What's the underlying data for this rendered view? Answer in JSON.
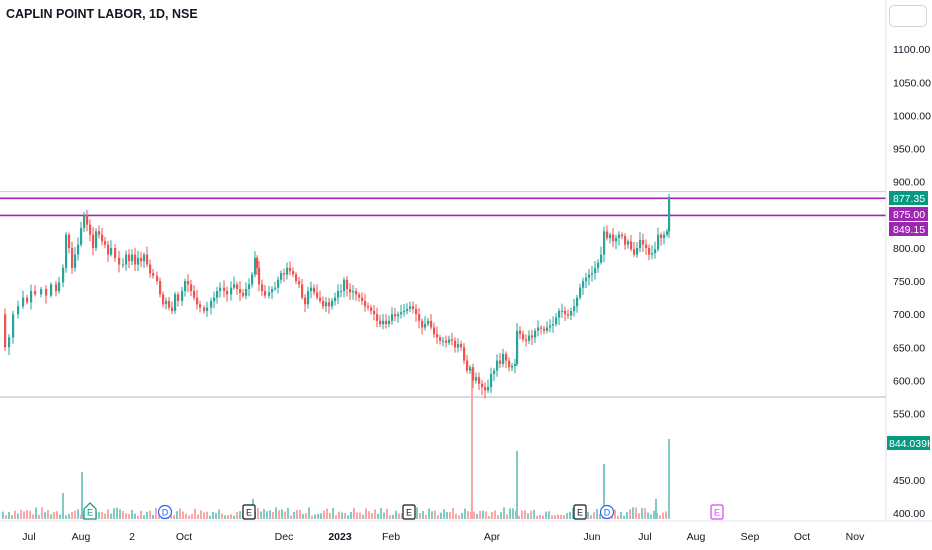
{
  "title": "CAPLIN POINT LABOR, 1D, NSE",
  "colors": {
    "up": "#26a69a",
    "down": "#ef5350",
    "level_line": "#9c27b0",
    "last_price_bg": "#089981",
    "hline": "#b2b5be",
    "grid": "#f0f3fa"
  },
  "chart_data": {
    "type": "candlestick",
    "price_axis": {
      "ticks": [
        "1100.00",
        "1050.00",
        "1000.00",
        "950.00",
        "900.00",
        "850.00",
        "800.00",
        "750.00",
        "700.00",
        "650.00",
        "600.00",
        "550.00",
        "450.00",
        "400.00"
      ],
      "range": [
        384,
        1160
      ]
    },
    "time_axis": {
      "labels": [
        "Jul",
        "Aug",
        "2",
        "Oct",
        "Dec",
        "2023",
        "Feb",
        "Apr",
        "Jun",
        "Jul",
        "Aug",
        "Sep",
        "Oct",
        "Nov"
      ],
      "bold": "2023"
    },
    "price_labels": [
      {
        "text": "877.35",
        "value": 877.35,
        "kind": "last"
      },
      {
        "text": "875.00",
        "value": 875.0,
        "kind": "level"
      },
      {
        "text": "849.15",
        "value": 849.15,
        "kind": "level"
      }
    ],
    "horizontal_lines": [
      {
        "value": 875.0,
        "style": "level"
      },
      {
        "value": 849.15,
        "style": "level"
      },
      {
        "value": 885,
        "style": "thin"
      },
      {
        "value": 575,
        "style": "thin"
      }
    ],
    "volume_label": "844.039K",
    "event_markers": [
      {
        "label": "E",
        "kind": "earnings",
        "date": "Aug"
      },
      {
        "label": "D",
        "kind": "dividend",
        "date": "Sep"
      },
      {
        "label": "E",
        "kind": "earnings",
        "date": "Nov"
      },
      {
        "label": "E",
        "kind": "earnings",
        "date": "Feb"
      },
      {
        "label": "E",
        "kind": "earnings",
        "date": "May"
      },
      {
        "label": "D",
        "kind": "dividend",
        "date": "Jun"
      },
      {
        "label": "E",
        "kind": "earnings_future",
        "date": "Aug"
      }
    ],
    "close_path": [
      [
        0,
        700
      ],
      [
        4,
        650
      ],
      [
        8,
        665
      ],
      [
        12,
        700
      ],
      [
        17,
        712
      ],
      [
        22,
        725
      ],
      [
        26,
        718
      ],
      [
        30,
        735
      ],
      [
        34,
        730
      ],
      [
        40,
        738
      ],
      [
        45,
        728
      ],
      [
        50,
        745
      ],
      [
        55,
        735
      ],
      [
        58,
        748
      ],
      [
        62,
        770
      ],
      [
        65,
        820
      ],
      [
        68,
        800
      ],
      [
        71,
        770
      ],
      [
        74,
        790
      ],
      [
        77,
        805
      ],
      [
        80,
        830
      ],
      [
        83,
        850
      ],
      [
        86,
        835
      ],
      [
        89,
        820
      ],
      [
        92,
        800
      ],
      [
        95,
        825
      ],
      [
        98,
        820
      ],
      [
        101,
        810
      ],
      [
        104,
        805
      ],
      [
        107,
        790
      ],
      [
        110,
        800
      ],
      [
        114,
        785
      ],
      [
        118,
        775
      ],
      [
        122,
        775
      ],
      [
        125,
        790
      ],
      [
        128,
        780
      ],
      [
        131,
        790
      ],
      [
        134,
        775
      ],
      [
        137,
        785
      ],
      [
        140,
        780
      ],
      [
        143,
        790
      ],
      [
        146,
        775
      ],
      [
        149,
        762
      ],
      [
        152,
        758
      ],
      [
        156,
        750
      ],
      [
        159,
        730
      ],
      [
        162,
        715
      ],
      [
        165,
        720
      ],
      [
        168,
        710
      ],
      [
        171,
        705
      ],
      [
        174,
        730
      ],
      [
        177,
        720
      ],
      [
        181,
        735
      ],
      [
        184,
        750
      ],
      [
        187,
        745
      ],
      [
        190,
        735
      ],
      [
        193,
        725
      ],
      [
        196,
        715
      ],
      [
        199,
        710
      ],
      [
        203,
        705
      ],
      [
        206,
        710
      ],
      [
        210,
        720
      ],
      [
        213,
        725
      ],
      [
        216,
        735
      ],
      [
        219,
        740
      ],
      [
        223,
        735
      ],
      [
        226,
        730
      ],
      [
        230,
        740
      ],
      [
        233,
        745
      ],
      [
        236,
        738
      ],
      [
        239,
        732
      ],
      [
        242,
        728
      ],
      [
        245,
        738
      ],
      [
        248,
        745
      ],
      [
        251,
        760
      ],
      [
        254,
        785
      ],
      [
        256,
        770
      ],
      [
        258,
        745
      ],
      [
        261,
        735
      ],
      [
        264,
        728
      ],
      [
        268,
        733
      ],
      [
        271,
        738
      ],
      [
        274,
        740
      ],
      [
        277,
        752
      ],
      [
        280,
        762
      ],
      [
        283,
        760
      ],
      [
        286,
        770
      ],
      [
        289,
        765
      ],
      [
        292,
        760
      ],
      [
        295,
        750
      ],
      [
        298,
        745
      ],
      [
        301,
        725
      ],
      [
        304,
        715
      ],
      [
        307,
        735
      ],
      [
        310,
        740
      ],
      [
        313,
        733
      ],
      [
        316,
        725
      ],
      [
        319,
        720
      ],
      [
        322,
        712
      ],
      [
        325,
        718
      ],
      [
        328,
        712
      ],
      [
        331,
        720
      ],
      [
        334,
        725
      ],
      [
        337,
        735
      ],
      [
        340,
        735
      ],
      [
        343,
        752
      ],
      [
        346,
        738
      ],
      [
        349,
        733
      ],
      [
        352,
        735
      ],
      [
        355,
        730
      ],
      [
        358,
        725
      ],
      [
        361,
        720
      ],
      [
        364,
        712
      ],
      [
        367,
        710
      ],
      [
        370,
        705
      ],
      [
        373,
        700
      ],
      [
        376,
        690
      ],
      [
        379,
        685
      ],
      [
        382,
        690
      ],
      [
        385,
        685
      ],
      [
        388,
        690
      ],
      [
        391,
        700
      ],
      [
        394,
        697
      ],
      [
        397,
        700
      ],
      [
        400,
        703
      ],
      [
        403,
        705
      ],
      [
        406,
        708
      ],
      [
        409,
        712
      ],
      [
        412,
        708
      ],
      [
        415,
        700
      ],
      [
        418,
        690
      ],
      [
        421,
        680
      ],
      [
        424,
        685
      ],
      [
        427,
        690
      ],
      [
        430,
        680
      ],
      [
        433,
        670
      ],
      [
        436,
        665
      ],
      [
        439,
        660
      ],
      [
        442,
        660
      ],
      [
        445,
        657
      ],
      [
        448,
        662
      ],
      [
        451,
        660
      ],
      [
        454,
        650
      ],
      [
        457,
        655
      ],
      [
        460,
        650
      ],
      [
        463,
        630
      ],
      [
        466,
        615
      ],
      [
        469,
        620
      ],
      [
        472,
        600
      ],
      [
        475,
        605
      ],
      [
        478,
        595
      ],
      [
        481,
        590
      ],
      [
        484,
        585
      ],
      [
        487,
        590
      ],
      [
        490,
        610
      ],
      [
        493,
        615
      ],
      [
        496,
        630
      ],
      [
        499,
        625
      ],
      [
        502,
        640
      ],
      [
        505,
        630
      ],
      [
        508,
        620
      ],
      [
        511,
        622
      ],
      [
        514,
        625
      ],
      [
        516,
        675
      ],
      [
        519,
        670
      ],
      [
        522,
        662
      ],
      [
        525,
        660
      ],
      [
        528,
        668
      ],
      [
        531,
        665
      ],
      [
        534,
        675
      ],
      [
        537,
        680
      ],
      [
        540,
        678
      ],
      [
        543,
        675
      ],
      [
        546,
        680
      ],
      [
        549,
        683
      ],
      [
        552,
        685
      ],
      [
        555,
        695
      ],
      [
        558,
        705
      ],
      [
        561,
        705
      ],
      [
        564,
        700
      ],
      [
        567,
        698
      ],
      [
        570,
        705
      ],
      [
        573,
        712
      ],
      [
        576,
        725
      ],
      [
        579,
        740
      ],
      [
        582,
        750
      ],
      [
        585,
        755
      ],
      [
        588,
        760
      ],
      [
        591,
        762
      ],
      [
        594,
        770
      ],
      [
        597,
        778
      ],
      [
        600,
        790
      ],
      [
        603,
        825
      ],
      [
        606,
        815
      ],
      [
        609,
        820
      ],
      [
        612,
        810
      ],
      [
        615,
        815
      ],
      [
        618,
        820
      ],
      [
        621,
        818
      ],
      [
        624,
        805
      ],
      [
        627,
        810
      ],
      [
        630,
        798
      ],
      [
        633,
        790
      ],
      [
        636,
        800
      ],
      [
        639,
        812
      ],
      [
        642,
        805
      ],
      [
        645,
        800
      ],
      [
        648,
        790
      ],
      [
        651,
        792
      ],
      [
        654,
        798
      ],
      [
        657,
        820
      ],
      [
        660,
        815
      ],
      [
        663,
        820
      ],
      [
        666,
        825
      ],
      [
        668,
        877
      ]
    ],
    "volume_spikes": [
      [
        471,
        150
      ],
      [
        516,
        68
      ],
      [
        603,
        55
      ],
      [
        81,
        47
      ],
      [
        668,
        80
      ],
      [
        655,
        20
      ],
      [
        252,
        20
      ],
      [
        62,
        26
      ]
    ]
  }
}
